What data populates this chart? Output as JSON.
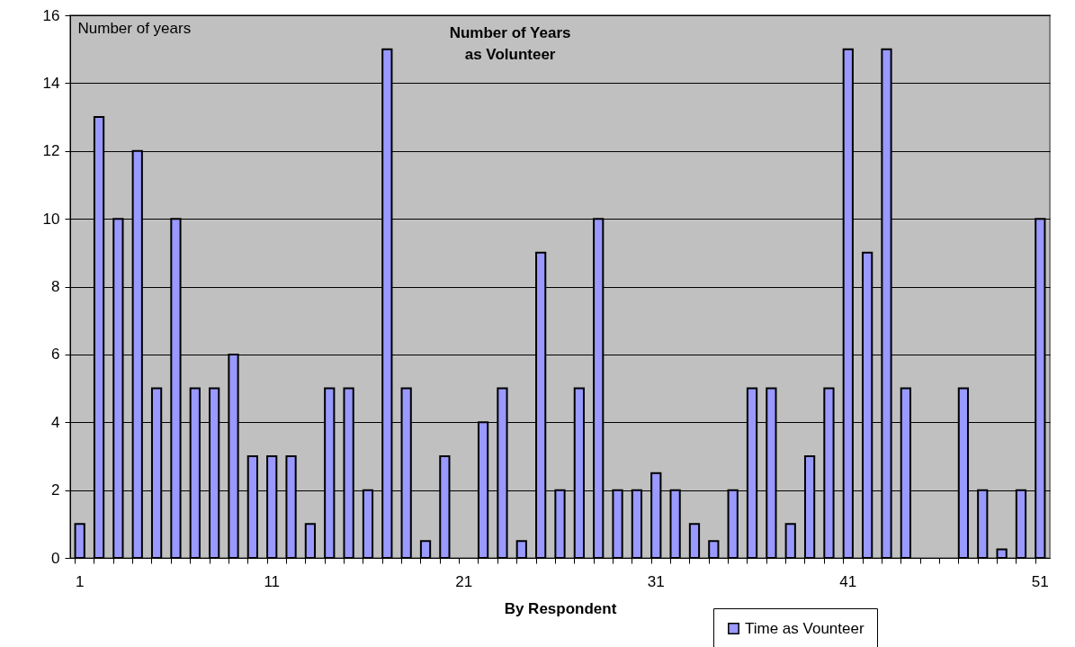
{
  "chart_data": {
    "type": "bar",
    "title": "Number of Years\nas Volunteer",
    "xlabel": "By Respondent",
    "ylabel": "Number of years",
    "categories": [
      "1",
      null,
      null,
      null,
      null,
      null,
      null,
      null,
      null,
      null,
      "11",
      null,
      null,
      null,
      null,
      null,
      null,
      null,
      null,
      null,
      "21",
      null,
      null,
      null,
      null,
      null,
      null,
      null,
      null,
      null,
      "31",
      null,
      null,
      null,
      null,
      null,
      null,
      null,
      null,
      null,
      "41",
      null,
      null,
      null,
      null,
      null,
      null,
      null,
      null,
      null,
      "51"
    ],
    "series": [
      {
        "name": "Time as Vounteer",
        "color": "#9999ff",
        "values": [
          1,
          13,
          10,
          12,
          5,
          10,
          5,
          5,
          6,
          3,
          3,
          3,
          1,
          5,
          5,
          2,
          15,
          5,
          0.5,
          3,
          0,
          4,
          5,
          0.5,
          9,
          2,
          5,
          10,
          2,
          2,
          2.5,
          2,
          1,
          0.5,
          2,
          5,
          5,
          1,
          3,
          5,
          15,
          9,
          15,
          5,
          0,
          0,
          5,
          2,
          0.25,
          2,
          10
        ]
      }
    ],
    "ylim": [
      0,
      16
    ],
    "yticks": [
      0,
      2,
      4,
      6,
      8,
      10,
      12,
      14,
      16
    ],
    "grid": "y",
    "legend": "bottom right"
  }
}
